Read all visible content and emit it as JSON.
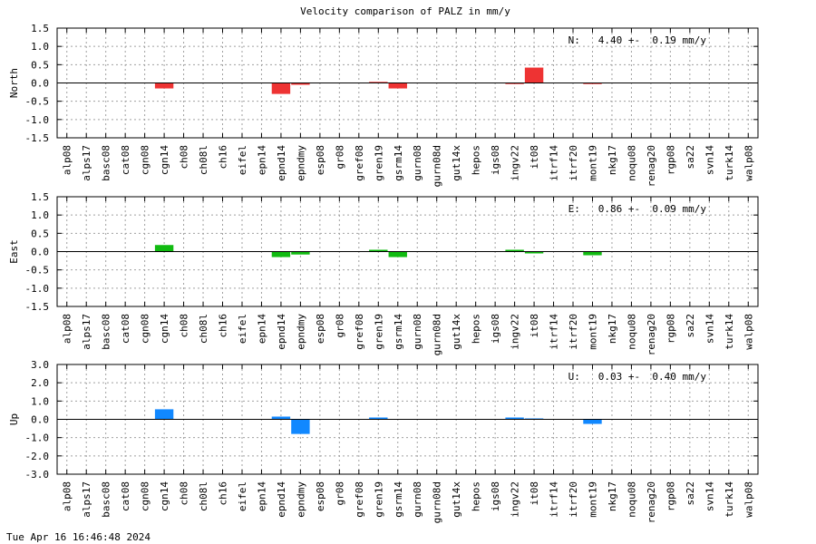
{
  "chart_data": {
    "type": "bar",
    "title": "Velocity comparison of PALZ in mm/y",
    "categories": [
      "alp08",
      "alps17",
      "basc08",
      "cat08",
      "cgn08",
      "cgn14",
      "ch08",
      "ch08l",
      "ch16",
      "eifel",
      "epn14",
      "epnd14",
      "epndmy",
      "esp08",
      "gr08",
      "gref08",
      "gren19",
      "gsrm14",
      "gurn08",
      "gurn08d",
      "gut14x",
      "hepos",
      "igs08",
      "ingv22",
      "it08",
      "itrf14",
      "itrf20",
      "mont19",
      "nkg17",
      "noqu08",
      "renag20",
      "rgp08",
      "sa22",
      "svn14",
      "turk14",
      "walp08"
    ],
    "grid": true,
    "panels": [
      {
        "ylabel": "North",
        "ylim": [
          -1.5,
          1.5
        ],
        "ytick_labels": [
          "1.5",
          "1.0",
          "0.5",
          "0.0",
          "-0.5",
          "-1.0",
          "-1.5"
        ],
        "annotation": "N:   4.40 +-  0.19 mm/y",
        "color": "#ee3333",
        "values": [
          0,
          0,
          0,
          0,
          0,
          -0.15,
          0,
          0,
          0,
          0,
          0,
          -0.3,
          -0.05,
          0,
          0,
          0,
          0.03,
          -0.15,
          0,
          0,
          0,
          0,
          0,
          -0.03,
          0.42,
          0,
          0,
          -0.03,
          0,
          0,
          0,
          0,
          0,
          0,
          0,
          0
        ]
      },
      {
        "ylabel": "East",
        "ylim": [
          -1.5,
          1.5
        ],
        "ytick_labels": [
          "1.5",
          "1.0",
          "0.5",
          "0.0",
          "-0.5",
          "-1.0",
          "-1.5"
        ],
        "annotation": "E:   0.86 +-  0.09 mm/y",
        "color": "#11bb11",
        "values": [
          0,
          0,
          0,
          0,
          0,
          0.18,
          0,
          0,
          0,
          0,
          0,
          -0.15,
          -0.08,
          0,
          0,
          0,
          0.05,
          -0.15,
          0,
          0,
          0,
          0,
          0,
          0.05,
          -0.05,
          0,
          0,
          -0.1,
          0,
          0,
          0,
          0,
          0,
          0,
          0,
          0
        ]
      },
      {
        "ylabel": "Up",
        "ylim": [
          -3.0,
          3.0
        ],
        "ytick_labels": [
          "3.0",
          "2.0",
          "1.0",
          "0.0",
          "-1.0",
          "-2.0",
          "-3.0"
        ],
        "annotation": "U:   0.03 +-  0.40 mm/y",
        "color": "#1188ff",
        "values": [
          0,
          0,
          0,
          0,
          0,
          0.55,
          0,
          0,
          0,
          0,
          0,
          0.15,
          -0.8,
          0,
          0,
          0,
          0.1,
          0,
          0,
          0,
          0,
          0,
          0,
          0.1,
          0.05,
          0,
          0,
          -0.25,
          0,
          0,
          0,
          0,
          0,
          0,
          0,
          0
        ]
      }
    ]
  },
  "footer": {
    "timestamp": "Tue Apr 16 16:46:48 2024"
  }
}
